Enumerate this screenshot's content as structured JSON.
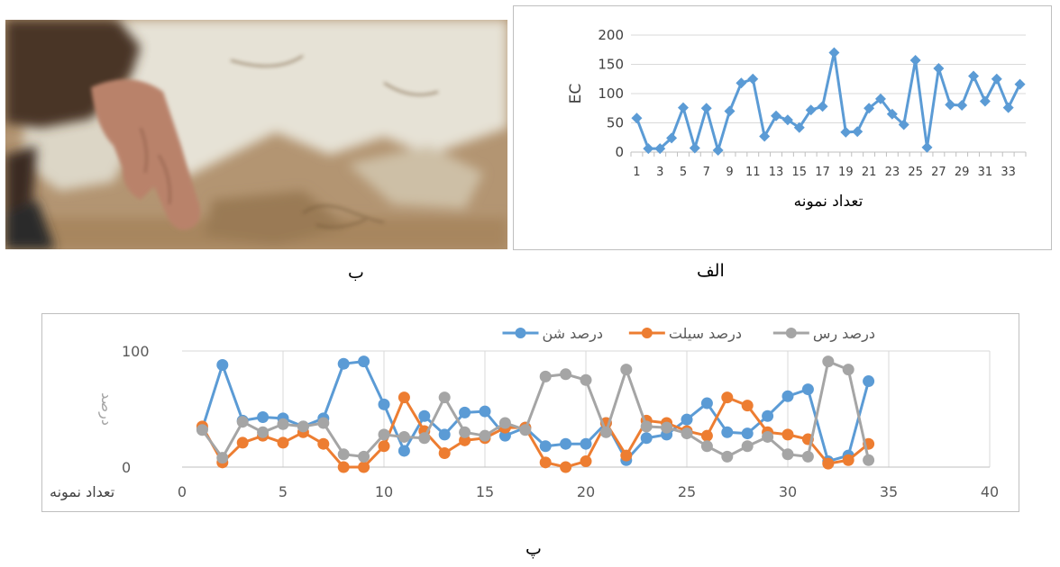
{
  "photo": {
    "caption": "ب"
  },
  "panel_captions": {
    "ec": "الف",
    "grain": "پ"
  },
  "chart_data": [
    {
      "id": "ec",
      "type": "line",
      "ylabel": "EC",
      "xlabel": "تعداد نمونه",
      "ylim": [
        0,
        200
      ],
      "yticks": [
        0,
        50,
        100,
        150,
        200
      ],
      "x": [
        1,
        2,
        3,
        4,
        5,
        6,
        7,
        8,
        9,
        10,
        11,
        12,
        13,
        14,
        15,
        16,
        17,
        18,
        19,
        20,
        21,
        22,
        23,
        24,
        25,
        26,
        27,
        28,
        29,
        30,
        31,
        32,
        33,
        34
      ],
      "xtick_labels": [
        "1",
        "3",
        "5",
        "7",
        "9",
        "11",
        "13",
        "15",
        "17",
        "19",
        "21",
        "23",
        "25",
        "27",
        "29",
        "31",
        "33"
      ],
      "grid": true,
      "legend": "none",
      "series": [
        {
          "color": "#5b9bd5",
          "marker": "diamond",
          "values": [
            58,
            6,
            6,
            24,
            76,
            7,
            75,
            3,
            70,
            118,
            125,
            27,
            62,
            55,
            42,
            72,
            78,
            170,
            34,
            35,
            75,
            91,
            65,
            47,
            157,
            8,
            143,
            81,
            80,
            130,
            87,
            125,
            76,
            116
          ]
        }
      ]
    },
    {
      "id": "grain",
      "type": "scatter",
      "ylabel": "درصد",
      "xlabel": "تعداد نمونه",
      "xlim": [
        0,
        40
      ],
      "xticks": [
        0,
        5,
        10,
        15,
        20,
        25,
        30,
        35,
        40
      ],
      "ylim": [
        0,
        100
      ],
      "yticks": [
        0,
        100
      ],
      "grid": true,
      "legend": "top",
      "x": [
        1,
        2,
        3,
        4,
        5,
        6,
        7,
        8,
        9,
        10,
        11,
        12,
        13,
        14,
        15,
        16,
        17,
        18,
        19,
        20,
        21,
        22,
        23,
        24,
        25,
        26,
        27,
        28,
        29,
        30,
        31,
        32,
        33,
        34
      ],
      "series": [
        {
          "name": "درصد شن",
          "color": "#5b9bd5",
          "values": [
            33,
            88,
            40,
            43,
            42,
            35,
            42,
            89,
            91,
            54,
            14,
            44,
            28,
            47,
            48,
            27,
            34,
            18,
            20,
            20,
            38,
            6,
            25,
            28,
            41,
            55,
            30,
            29,
            44,
            61,
            67,
            5,
            10,
            74
          ]
        },
        {
          "name": "درصد سیلت",
          "color": "#ed7d31",
          "values": [
            35,
            4,
            21,
            27,
            21,
            30,
            20,
            0,
            0,
            18,
            60,
            31,
            12,
            23,
            25,
            34,
            34,
            4,
            0,
            5,
            38,
            10,
            40,
            38,
            31,
            27,
            60,
            53,
            30,
            28,
            24,
            3,
            6,
            20
          ]
        },
        {
          "name": "درصد رس",
          "color": "#a5a5a5",
          "values": [
            32,
            8,
            39,
            30,
            37,
            35,
            38,
            11,
            9,
            28,
            26,
            25,
            60,
            30,
            27,
            38,
            32,
            78,
            80,
            75,
            30,
            84,
            35,
            34,
            29,
            18,
            9,
            18,
            26,
            11,
            9,
            91,
            84,
            6
          ]
        }
      ]
    }
  ]
}
